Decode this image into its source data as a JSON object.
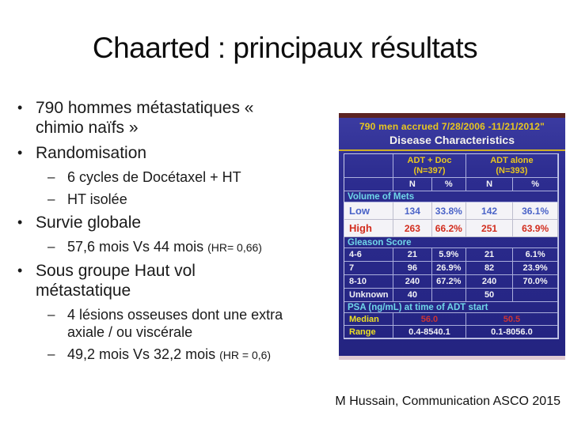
{
  "title": "Chaarted : principaux résultats",
  "markers": {
    "l1": "•",
    "l2": "–"
  },
  "bullets": [
    {
      "level": 1,
      "text": "790 hommes métastatiques « chimio naïfs »"
    },
    {
      "level": 1,
      "text": "Randomisation"
    },
    {
      "level": 2,
      "text": "6 cycles de Docétaxel + HT"
    },
    {
      "level": 2,
      "text": "HT isolée"
    },
    {
      "level": 1,
      "text": "Survie globale"
    },
    {
      "level": 2,
      "text": "57,6 mois Vs 44 mois",
      "suffix": "(HR= 0,66)"
    },
    {
      "level": 1,
      "text": "Sous groupe Haut vol métastatique"
    },
    {
      "level": 2,
      "text": "4 lésions osseuses dont une extra axiale / ou viscérale"
    },
    {
      "level": 2,
      "text": "49,2 mois Vs 32,2 mois",
      "suffix": "(HR = 0,6)"
    }
  ],
  "photo": {
    "accrual_line": "790 men accrued 7/28/2006 -11/21/2012\"",
    "subtitle": "Disease Characteristics",
    "columns": {
      "arm1_name": "ADT + Doc",
      "arm1_n": "(N=397)",
      "arm2_name": "ADT alone",
      "arm2_n": "(N=393)",
      "sub": [
        "N",
        "%",
        "N",
        "%"
      ]
    },
    "sections": {
      "volume": "Volume of Mets",
      "gleason": "Gleason Score",
      "psa": "PSA (ng/mL) at time of ADT start"
    },
    "rows": {
      "low": {
        "label": "Low",
        "n1": "134",
        "p1": "33.8%",
        "n2": "142",
        "p2": "36.1%"
      },
      "high": {
        "label": "High",
        "n1": "263",
        "p1": "66.2%",
        "n2": "251",
        "p2": "63.9%"
      },
      "g46": {
        "label": "4-6",
        "n1": "21",
        "p1": "5.9%",
        "n2": "21",
        "p2": "6.1%"
      },
      "g7": {
        "label": "7",
        "n1": "96",
        "p1": "26.9%",
        "n2": "82",
        "p2": "23.9%"
      },
      "g810": {
        "label": "8-10",
        "n1": "240",
        "p1": "67.2%",
        "n2": "240",
        "p2": "70.0%"
      },
      "unknown": {
        "label": "Unknown",
        "n1": "40",
        "p1": "",
        "n2": "50",
        "p2": ""
      },
      "median": {
        "label": "Median",
        "v1": "56.0",
        "v2": "50.5"
      },
      "range": {
        "label": "Range",
        "v1": "0.4-8540.1",
        "v2": "0.1-8056.0"
      }
    }
  },
  "attribution": "M Hussain, Communication ASCO 2015",
  "colors": {
    "table_bg_blue": "#2d2d90",
    "table_yellow": "#e9c71f",
    "table_cyan": "#6fd6e8",
    "low_blue": "#4a63c8",
    "high_red": "#d22d1e",
    "median_red": "#cc3434",
    "top_strip_maroon": "#5c2422"
  }
}
